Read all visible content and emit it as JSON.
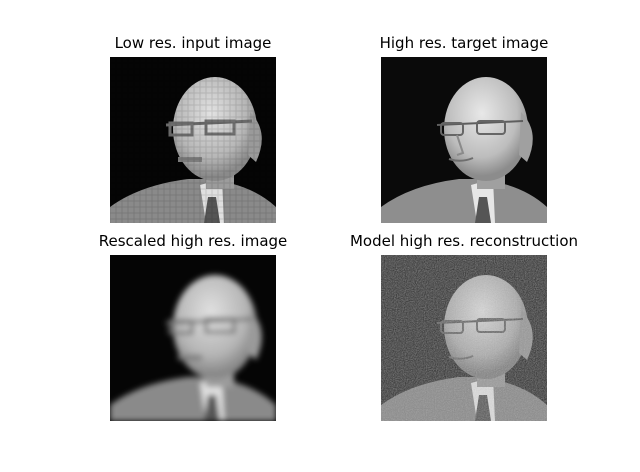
{
  "panels": [
    {
      "title": "Low res. input image",
      "style": "blocky"
    },
    {
      "title": "High res. target image",
      "style": "sharp"
    },
    {
      "title": "Rescaled high res. image",
      "style": "blur"
    },
    {
      "title": "Model high res. reconstruction",
      "style": "noisy"
    }
  ],
  "colors": {
    "background": "#ffffff",
    "image_bg": "#050505",
    "skin": "#c8c8c8",
    "suit": "#8a8a8a",
    "shirt": "#e6e6e6",
    "tie": "#555555"
  }
}
